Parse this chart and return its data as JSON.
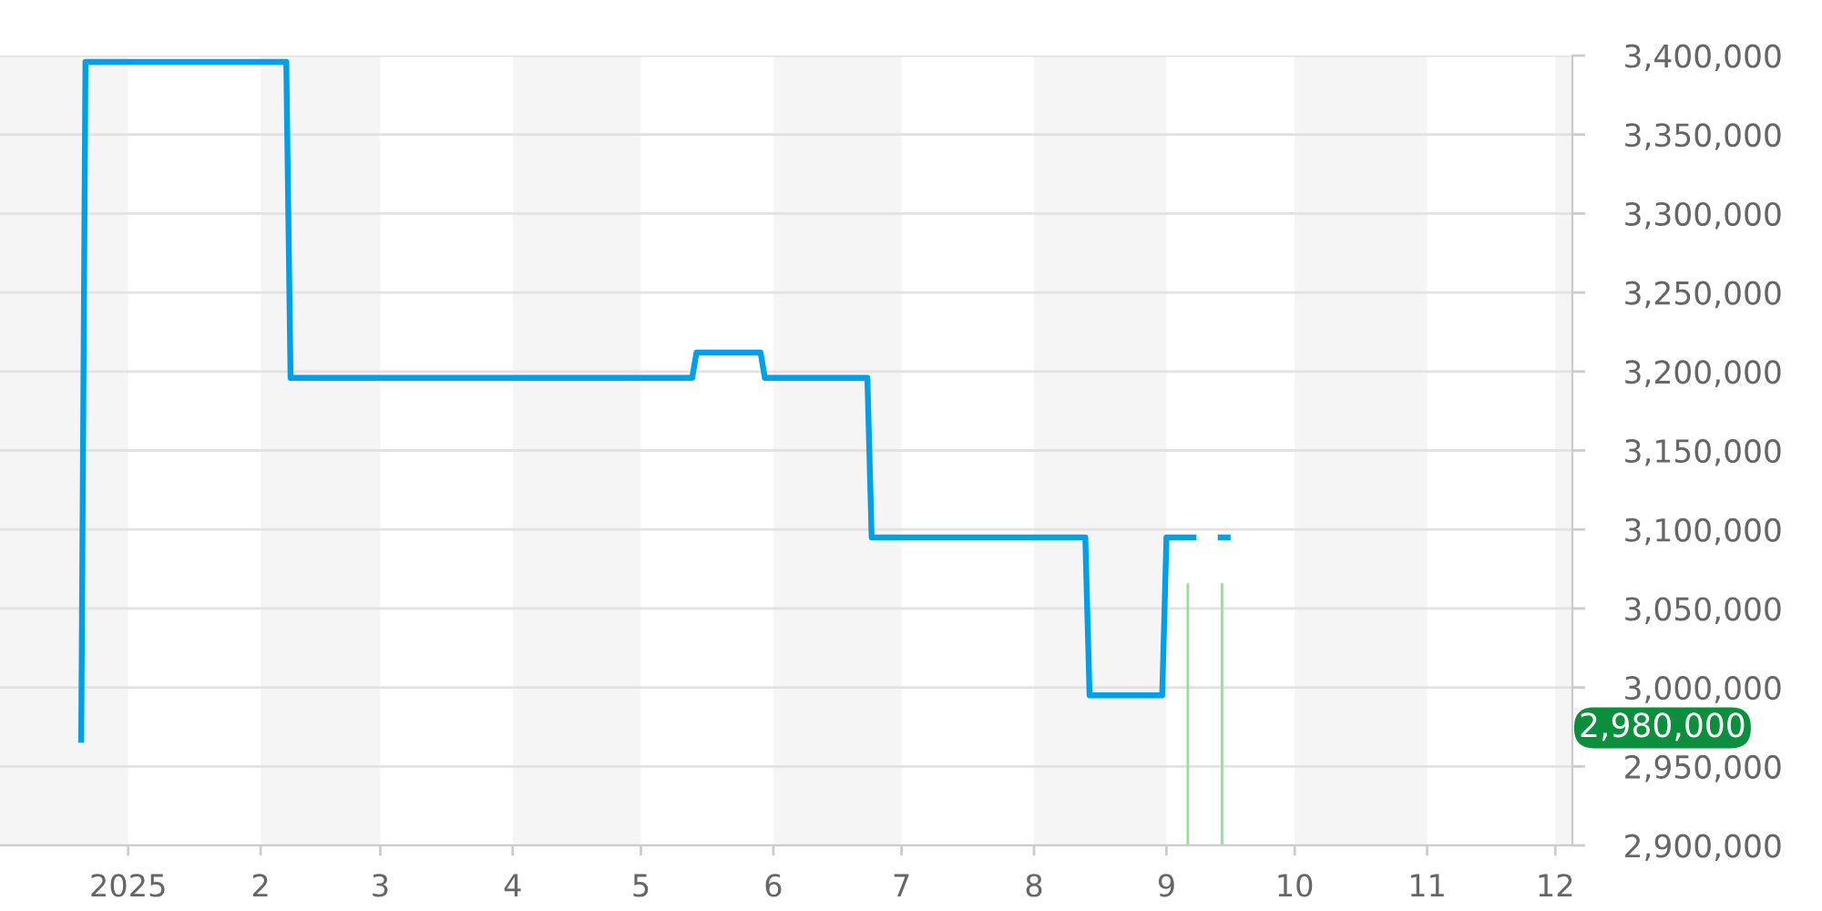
{
  "chart_data": {
    "type": "line",
    "series": [
      {
        "color": "#00a0e9",
        "x": [
          "2024-12-21",
          "2024-12-22",
          "2025-02-07",
          "2025-02-08",
          "2025-05-13",
          "2025-05-14",
          "2025-05-29",
          "2025-05-30",
          "2025-06-23",
          "2025-06-24",
          "2025-08-13",
          "2025-08-14",
          "2025-08-31",
          "2025-09-01",
          "2025-09-08",
          "2025-09-10",
          "2025-09-13",
          "2025-09-16"
        ],
        "values": [
          2965000,
          3396000,
          3396000,
          3196000,
          3196000,
          3212000,
          3212000,
          3196000,
          3196000,
          3095000,
          3095000,
          2995000,
          2995000,
          3095000,
          3095000,
          null,
          3095000,
          3095000
        ]
      },
      {
        "type": "bar",
        "color": "#9fd9a0",
        "x": [
          "2025-09-06",
          "2025-09-14"
        ],
        "values": [
          3066000,
          3066000
        ]
      }
    ],
    "xlim": [
      "2024-12-02",
      "2025-12-05"
    ],
    "xticks": [
      {
        "value": "2025-01-01",
        "label": "2025"
      },
      {
        "value": "2025-02-01",
        "label": "2"
      },
      {
        "value": "2025-03-01",
        "label": "3"
      },
      {
        "value": "2025-04-01",
        "label": "4"
      },
      {
        "value": "2025-05-01",
        "label": "5"
      },
      {
        "value": "2025-06-01",
        "label": "6"
      },
      {
        "value": "2025-07-01",
        "label": "7"
      },
      {
        "value": "2025-08-01",
        "label": "8"
      },
      {
        "value": "2025-09-01",
        "label": "9"
      },
      {
        "value": "2025-10-01",
        "label": "10"
      },
      {
        "value": "2025-11-01",
        "label": "11"
      },
      {
        "value": "2025-12-01",
        "label": "12"
      }
    ],
    "ylim": [
      2900000,
      3400000
    ],
    "yticks": [
      {
        "value": 2900000,
        "label": "2,900,000"
      },
      {
        "value": 2950000,
        "label": "2,950,000"
      },
      {
        "value": 3000000,
        "label": "3,000,000"
      },
      {
        "value": 3050000,
        "label": "3,050,000"
      },
      {
        "value": 3100000,
        "label": "3,100,000"
      },
      {
        "value": 3150000,
        "label": "3,150,000"
      },
      {
        "value": 3200000,
        "label": "3,200,000"
      },
      {
        "value": 3250000,
        "label": "3,250,000"
      },
      {
        "value": 3300000,
        "label": "3,300,000"
      },
      {
        "value": 3350000,
        "label": "3,350,000"
      },
      {
        "value": 3400000,
        "label": "3,400,000"
      }
    ],
    "grid": "y",
    "bands": [
      {
        "axis": "x",
        "from": "2024-12-02",
        "to": "2025-01-01",
        "color": "#f5f5f5"
      },
      {
        "axis": "x",
        "from": "2025-02-01",
        "to": "2025-03-01",
        "color": "#f5f5f5"
      },
      {
        "axis": "x",
        "from": "2025-04-01",
        "to": "2025-05-01",
        "color": "#f5f5f5"
      },
      {
        "axis": "x",
        "from": "2025-06-01",
        "to": "2025-07-01",
        "color": "#f5f5f5"
      },
      {
        "axis": "x",
        "from": "2025-08-01",
        "to": "2025-09-01",
        "color": "#f5f5f5"
      },
      {
        "axis": "x",
        "from": "2025-10-01",
        "to": "2025-11-01",
        "color": "#f5f5f5"
      },
      {
        "axis": "x",
        "from": "2025-12-01",
        "to": "2025-12-05",
        "color": "#f5f5f5"
      }
    ],
    "annotations": [
      "2,980,000"
    ]
  }
}
